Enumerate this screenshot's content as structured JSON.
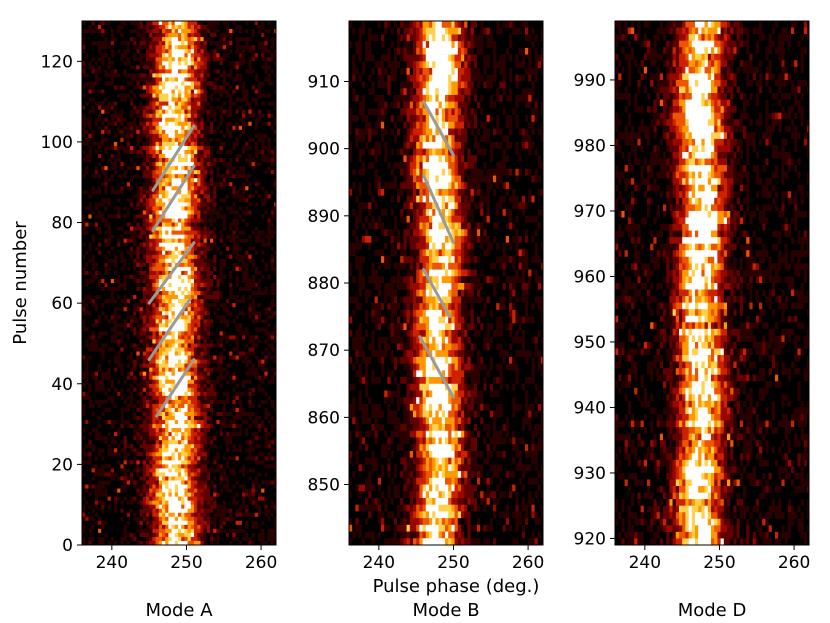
{
  "figure": {
    "ylabel": "Pulse number",
    "xlabel": "Pulse phase (deg.)"
  },
  "chart_data": [
    {
      "type": "heatmap",
      "caption": "Mode A",
      "xlim": [
        236,
        262
      ],
      "ylim": [
        0,
        130
      ],
      "xticks": [
        240,
        250,
        260
      ],
      "yticks": [
        0,
        20,
        40,
        60,
        80,
        100,
        120
      ],
      "ylabel": "Pulse number",
      "center_phase": 248.5,
      "driftband_overlay": [
        {
          "x": [
            246,
            251
          ],
          "y": [
            32,
            46
          ]
        },
        {
          "x": [
            245,
            250.5
          ],
          "y": [
            46,
            61
          ]
        },
        {
          "x": [
            245,
            251
          ],
          "y": [
            60,
            75
          ]
        },
        {
          "x": [
            245.5,
            251
          ],
          "y": [
            78,
            94
          ]
        },
        {
          "x": [
            245.5,
            251
          ],
          "y": [
            88,
            104
          ]
        }
      ]
    },
    {
      "type": "heatmap",
      "caption": "Mode B",
      "xlim": [
        236,
        262
      ],
      "ylim": [
        841,
        919
      ],
      "xticks": [
        240,
        250,
        260
      ],
      "yticks": [
        850,
        860,
        870,
        880,
        890,
        900,
        910
      ],
      "xlabel": "Pulse phase (deg.)",
      "center_phase": 248.0,
      "driftband_overlay": [
        {
          "x": [
            246,
            250
          ],
          "y": [
            907,
            899
          ]
        },
        {
          "x": [
            246,
            250
          ],
          "y": [
            896,
            886
          ]
        },
        {
          "x": [
            246,
            249.5
          ],
          "y": [
            882,
            875
          ]
        },
        {
          "x": [
            245.5,
            250
          ],
          "y": [
            872,
            863
          ]
        }
      ]
    },
    {
      "type": "heatmap",
      "caption": "Mode D",
      "xlim": [
        236,
        262
      ],
      "ylim": [
        919,
        999
      ],
      "xticks": [
        240,
        250,
        260
      ],
      "yticks": [
        920,
        930,
        940,
        950,
        960,
        970,
        980,
        990
      ],
      "center_phase": 247.5,
      "driftband_overlay": []
    }
  ],
  "colors": {
    "colormap": [
      "#000000",
      "#2a0000",
      "#600000",
      "#990800",
      "#cc2200",
      "#ee5500",
      "#ff9900",
      "#ffd24d",
      "#ffffff"
    ],
    "overlay_line": "#9a9a9a"
  }
}
